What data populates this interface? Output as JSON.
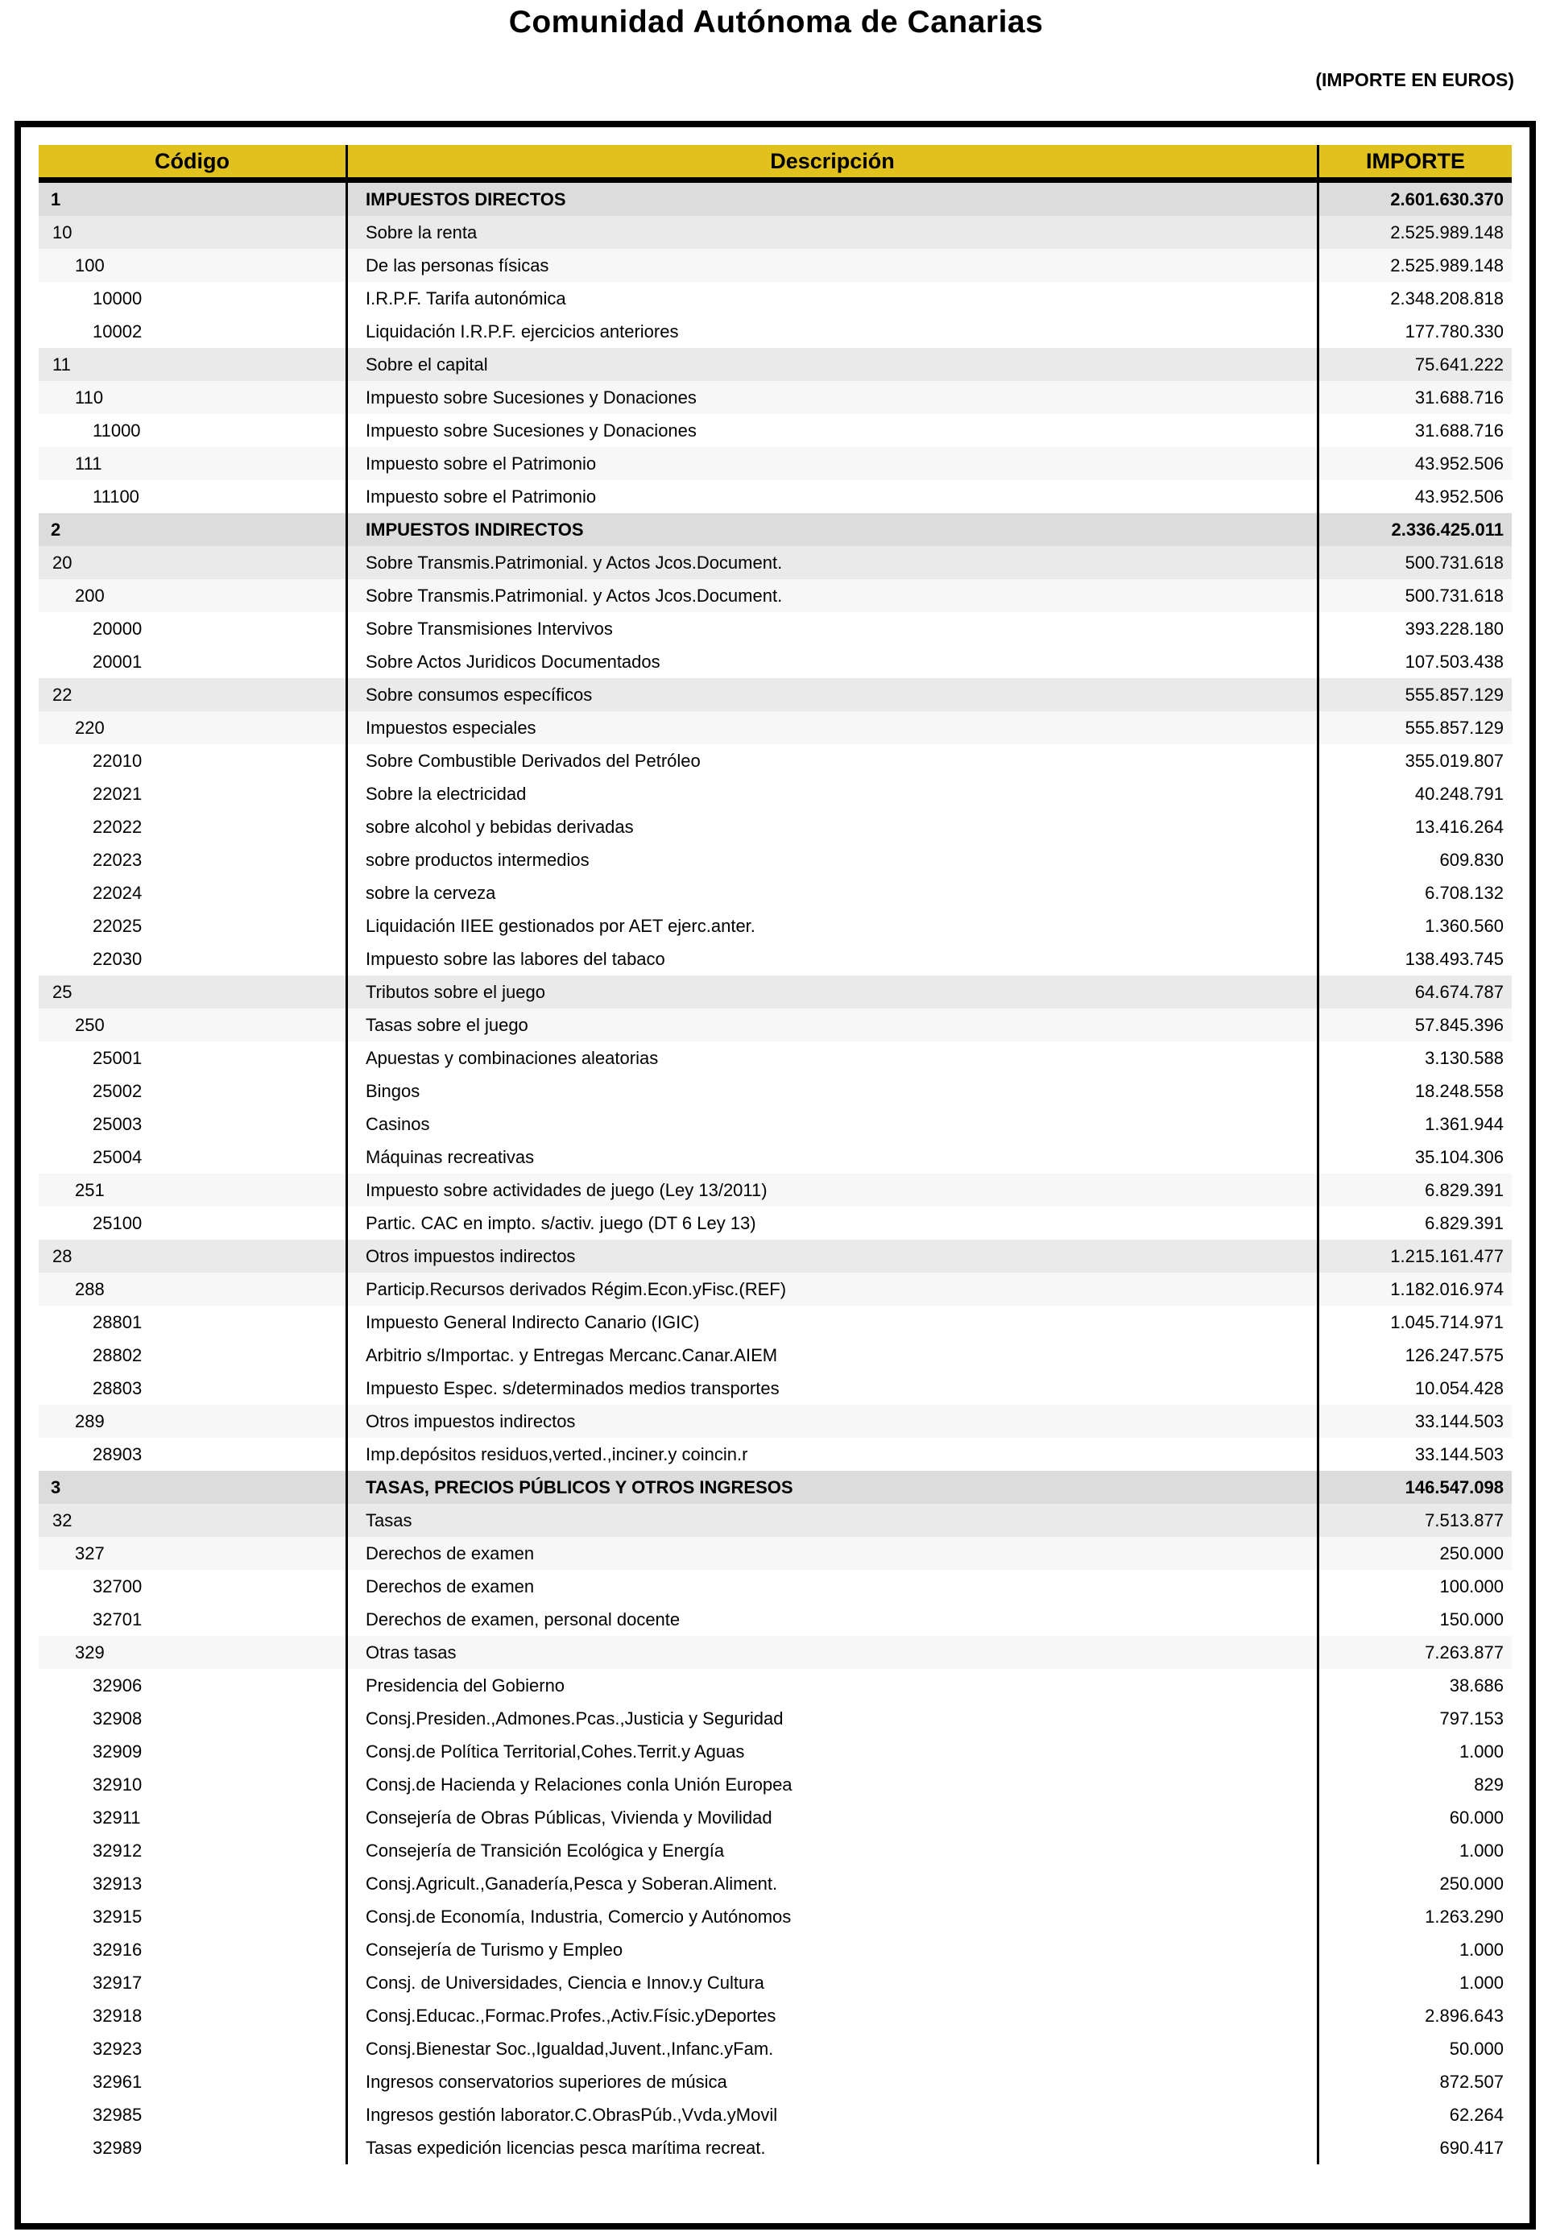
{
  "page": {
    "title": "Comunidad Autónoma de Canarias",
    "subtitle": "(IMPORTE EN EUROS)"
  },
  "colors": {
    "header_bg": "#E0C11E",
    "level1_row_bg": "#DCDCDC",
    "level2_row_bg": "#EAEAEA",
    "level3_row_bg": "#F7F7F7",
    "level5_row_bg": "#FFFFFF",
    "border": "#000000"
  },
  "table": {
    "columns": [
      "Código",
      "Descripción",
      "IMPORTE"
    ],
    "rows": [
      {
        "code": "1",
        "desc": "IMPUESTOS DIRECTOS",
        "amount": "2.601.630.370",
        "level": 1
      },
      {
        "code": "10",
        "desc": "Sobre la renta",
        "amount": "2.525.989.148",
        "level": 2
      },
      {
        "code": "100",
        "desc": "De las personas físicas",
        "amount": "2.525.989.148",
        "level": 3
      },
      {
        "code": "10000",
        "desc": "I.R.P.F. Tarifa autonómica",
        "amount": "2.348.208.818",
        "level": 5
      },
      {
        "code": "10002",
        "desc": "Liquidación I.R.P.F. ejercicios anteriores",
        "amount": "177.780.330",
        "level": 5
      },
      {
        "code": "11",
        "desc": "Sobre el capital",
        "amount": "75.641.222",
        "level": 2
      },
      {
        "code": "110",
        "desc": "Impuesto sobre Sucesiones y Donaciones",
        "amount": "31.688.716",
        "level": 3
      },
      {
        "code": "11000",
        "desc": "Impuesto sobre Sucesiones y Donaciones",
        "amount": "31.688.716",
        "level": 5
      },
      {
        "code": "111",
        "desc": "Impuesto sobre el Patrimonio",
        "amount": "43.952.506",
        "level": 3
      },
      {
        "code": "11100",
        "desc": "Impuesto sobre el Patrimonio",
        "amount": "43.952.506",
        "level": 5
      },
      {
        "code": "2",
        "desc": "IMPUESTOS INDIRECTOS",
        "amount": "2.336.425.011",
        "level": 1
      },
      {
        "code": "20",
        "desc": "Sobre Transmis.Patrimonial. y Actos Jcos.Document.",
        "amount": "500.731.618",
        "level": 2
      },
      {
        "code": "200",
        "desc": "Sobre Transmis.Patrimonial. y Actos Jcos.Document.",
        "amount": "500.731.618",
        "level": 3
      },
      {
        "code": "20000",
        "desc": "Sobre Transmisiones Intervivos",
        "amount": "393.228.180",
        "level": 5
      },
      {
        "code": "20001",
        "desc": "Sobre Actos Juridicos Documentados",
        "amount": "107.503.438",
        "level": 5
      },
      {
        "code": "22",
        "desc": "Sobre consumos específicos",
        "amount": "555.857.129",
        "level": 2
      },
      {
        "code": "220",
        "desc": "Impuestos especiales",
        "amount": "555.857.129",
        "level": 3
      },
      {
        "code": "22010",
        "desc": "Sobre Combustible Derivados del Petróleo",
        "amount": "355.019.807",
        "level": 5
      },
      {
        "code": "22021",
        "desc": "Sobre la electricidad",
        "amount": "40.248.791",
        "level": 5
      },
      {
        "code": "22022",
        "desc": "sobre alcohol y bebidas derivadas",
        "amount": "13.416.264",
        "level": 5
      },
      {
        "code": "22023",
        "desc": "sobre productos intermedios",
        "amount": "609.830",
        "level": 5
      },
      {
        "code": "22024",
        "desc": "sobre la cerveza",
        "amount": "6.708.132",
        "level": 5
      },
      {
        "code": "22025",
        "desc": "Liquidación IIEE gestionados por AET ejerc.anter.",
        "amount": "1.360.560",
        "level": 5
      },
      {
        "code": "22030",
        "desc": "Impuesto sobre las labores del tabaco",
        "amount": "138.493.745",
        "level": 5
      },
      {
        "code": "25",
        "desc": "Tributos sobre el juego",
        "amount": "64.674.787",
        "level": 2
      },
      {
        "code": "250",
        "desc": "Tasas sobre el juego",
        "amount": "57.845.396",
        "level": 3
      },
      {
        "code": "25001",
        "desc": "Apuestas y combinaciones aleatorias",
        "amount": "3.130.588",
        "level": 5
      },
      {
        "code": "25002",
        "desc": "Bingos",
        "amount": "18.248.558",
        "level": 5
      },
      {
        "code": "25003",
        "desc": "Casinos",
        "amount": "1.361.944",
        "level": 5
      },
      {
        "code": "25004",
        "desc": "Máquinas recreativas",
        "amount": "35.104.306",
        "level": 5
      },
      {
        "code": "251",
        "desc": "Impuesto sobre actividades de juego (Ley 13/2011)",
        "amount": "6.829.391",
        "level": 3
      },
      {
        "code": "25100",
        "desc": "Partic. CAC en impto. s/activ. juego (DT 6 Ley 13)",
        "amount": "6.829.391",
        "level": 5
      },
      {
        "code": "28",
        "desc": "Otros impuestos indirectos",
        "amount": "1.215.161.477",
        "level": 2
      },
      {
        "code": "288",
        "desc": "Particip.Recursos derivados Régim.Econ.yFisc.(REF)",
        "amount": "1.182.016.974",
        "level": 3
      },
      {
        "code": "28801",
        "desc": "Impuesto General Indirecto Canario (IGIC)",
        "amount": "1.045.714.971",
        "level": 5
      },
      {
        "code": "28802",
        "desc": "Arbitrio s/Importac. y Entregas Mercanc.Canar.AIEM",
        "amount": "126.247.575",
        "level": 5
      },
      {
        "code": "28803",
        "desc": "Impuesto Espec. s/determinados medios transportes",
        "amount": "10.054.428",
        "level": 5
      },
      {
        "code": "289",
        "desc": "Otros impuestos indirectos",
        "amount": "33.144.503",
        "level": 3
      },
      {
        "code": "28903",
        "desc": "Imp.depósitos residuos,verted.,inciner.y coincin.r",
        "amount": "33.144.503",
        "level": 5
      },
      {
        "code": "3",
        "desc": "TASAS, PRECIOS PÚBLICOS Y OTROS INGRESOS",
        "amount": "146.547.098",
        "level": 1
      },
      {
        "code": "32",
        "desc": "Tasas",
        "amount": "7.513.877",
        "level": 2
      },
      {
        "code": "327",
        "desc": "Derechos de examen",
        "amount": "250.000",
        "level": 3
      },
      {
        "code": "32700",
        "desc": "Derechos de examen",
        "amount": "100.000",
        "level": 5
      },
      {
        "code": "32701",
        "desc": "Derechos de examen, personal docente",
        "amount": "150.000",
        "level": 5
      },
      {
        "code": "329",
        "desc": "Otras tasas",
        "amount": "7.263.877",
        "level": 3
      },
      {
        "code": "32906",
        "desc": "Presidencia del Gobierno",
        "amount": "38.686",
        "level": 5
      },
      {
        "code": "32908",
        "desc": "Consj.Presiden.,Admones.Pcas.,Justicia y Seguridad",
        "amount": "797.153",
        "level": 5
      },
      {
        "code": "32909",
        "desc": "Consj.de Política Territorial,Cohes.Territ.y Aguas",
        "amount": "1.000",
        "level": 5
      },
      {
        "code": "32910",
        "desc": "Consj.de Hacienda y Relaciones conla Unión Europea",
        "amount": "829",
        "level": 5
      },
      {
        "code": "32911",
        "desc": "Consejería de Obras Públicas, Vivienda y Movilidad",
        "amount": "60.000",
        "level": 5
      },
      {
        "code": "32912",
        "desc": "Consejería de Transición Ecológica y Energía",
        "amount": "1.000",
        "level": 5
      },
      {
        "code": "32913",
        "desc": "Consj.Agricult.,Ganadería,Pesca y Soberan.Aliment.",
        "amount": "250.000",
        "level": 5
      },
      {
        "code": "32915",
        "desc": "Consj.de Economía, Industria, Comercio y Autónomos",
        "amount": "1.263.290",
        "level": 5
      },
      {
        "code": "32916",
        "desc": "Consejería de Turismo y Empleo",
        "amount": "1.000",
        "level": 5
      },
      {
        "code": "32917",
        "desc": "Consj. de Universidades, Ciencia e Innov.y Cultura",
        "amount": "1.000",
        "level": 5
      },
      {
        "code": "32918",
        "desc": "Consj.Educac.,Formac.Profes.,Activ.Físic.yDeportes",
        "amount": "2.896.643",
        "level": 5
      },
      {
        "code": "32923",
        "desc": "Consj.Bienestar Soc.,Igualdad,Juvent.,Infanc.yFam.",
        "amount": "50.000",
        "level": 5
      },
      {
        "code": "32961",
        "desc": "Ingresos conservatorios superiores de música",
        "amount": "872.507",
        "level": 5
      },
      {
        "code": "32985",
        "desc": "Ingresos gestión laborator.C.ObrasPúb.,Vvda.yMovil",
        "amount": "62.264",
        "level": 5
      },
      {
        "code": "32989",
        "desc": "Tasas expedición licencias pesca marítima recreat.",
        "amount": "690.417",
        "level": 5
      }
    ]
  }
}
